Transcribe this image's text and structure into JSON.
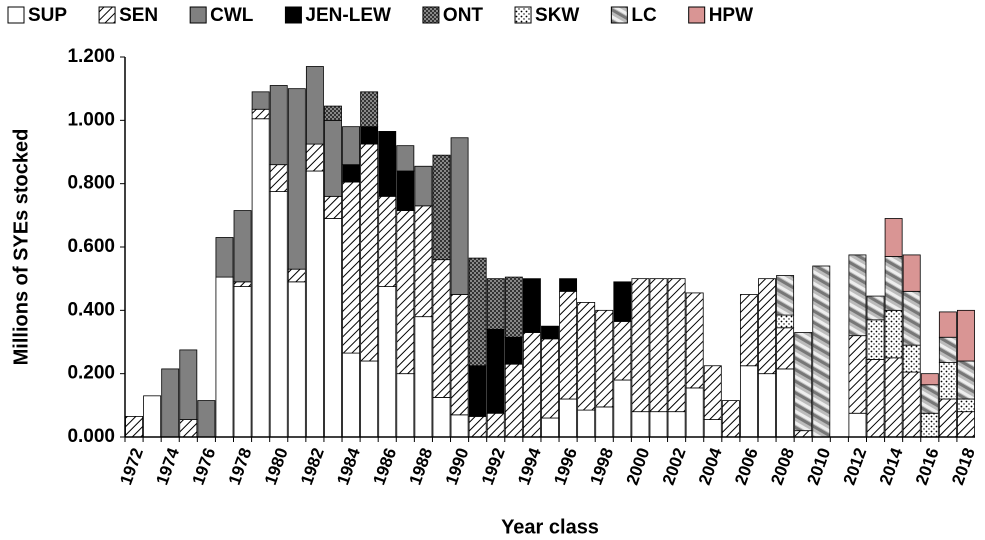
{
  "chart_data": {
    "type": "stacked-bar",
    "xlabel": "Year class",
    "ylabel": "Millions of SYEs stocked",
    "categories": [
      "1972",
      null,
      "1974",
      null,
      "1976",
      null,
      "1978",
      null,
      "1980",
      null,
      "1982",
      null,
      "1984",
      null,
      "1986",
      null,
      "1988",
      null,
      "1990",
      null,
      "1992",
      null,
      "1994",
      null,
      "1996",
      null,
      "1998",
      null,
      "2000",
      null,
      "2002",
      null,
      "2004",
      null,
      "2006",
      null,
      "2008",
      null,
      "2010",
      null,
      "2012",
      null,
      "2014",
      null,
      "2016",
      null,
      "2018"
    ],
    "ylim": [
      0,
      1.2
    ],
    "yticks": [
      {
        "value": 0,
        "label": "0.000"
      },
      {
        "value": 0.2,
        "label": "0.200"
      },
      {
        "value": 0.4,
        "label": "0.400"
      },
      {
        "value": 0.6,
        "label": "0.600"
      },
      {
        "value": 0.8,
        "label": "0.800"
      },
      {
        "value": 1.0,
        "label": "1.000"
      },
      {
        "value": 1.2,
        "label": "1.200"
      }
    ],
    "series": [
      {
        "name": "SUP",
        "color": "#ffffff",
        "pattern": "solid",
        "values": [
          0,
          0.13,
          0,
          0,
          0,
          0.505,
          0.475,
          1.005,
          0.775,
          0.49,
          0.84,
          0.69,
          0.265,
          0.24,
          0.475,
          0.2,
          0.38,
          0.125,
          0.07,
          0,
          0,
          0,
          0,
          0.06,
          0.12,
          0.085,
          0.095,
          0.18,
          0.08,
          0.08,
          0.08,
          0.155,
          0.055,
          0,
          0.225,
          0.2,
          0.215,
          0,
          0,
          0,
          0.075,
          0,
          0,
          0,
          0,
          0,
          0
        ]
      },
      {
        "name": "SEN",
        "color": "#000000",
        "pattern": "hatch",
        "values": [
          0.065,
          0,
          0,
          0.055,
          0,
          0,
          0.015,
          0.03,
          0.085,
          0.04,
          0.085,
          0.07,
          0.54,
          0.685,
          0.285,
          0.515,
          0.35,
          0.435,
          0.38,
          0.065,
          0.075,
          0.23,
          0.33,
          0.25,
          0.34,
          0.34,
          0.305,
          0.185,
          0.42,
          0.42,
          0.42,
          0.3,
          0.17,
          0.115,
          0.225,
          0.3,
          0.13,
          0.02,
          0,
          0,
          0.245,
          0.245,
          0.25,
          0.205,
          0,
          0.12,
          0.08
        ]
      },
      {
        "name": "CWL",
        "color": "#808080",
        "pattern": "solid",
        "values": [
          0,
          0,
          0.215,
          0.22,
          0.115,
          0.125,
          0.225,
          0.055,
          0.25,
          0.57,
          0.245,
          0.24,
          0.12,
          0,
          0,
          0.08,
          0.125,
          0,
          0.495,
          0,
          0,
          0,
          0,
          0,
          0,
          0,
          0,
          0,
          0,
          0,
          0,
          0,
          0,
          0,
          0,
          0,
          0,
          0,
          0,
          0,
          0,
          0,
          0,
          0,
          0,
          0,
          0
        ]
      },
      {
        "name": "JEN-LEW",
        "color": "#000000",
        "pattern": "solid",
        "values": [
          0,
          0,
          0,
          0,
          0,
          0,
          0,
          0,
          0,
          0,
          0,
          0,
          0.055,
          0.055,
          0.205,
          0.125,
          0,
          0,
          0,
          0.16,
          0.265,
          0.085,
          0.17,
          0.04,
          0.04,
          0,
          0,
          0.125,
          0,
          0,
          0,
          0,
          0,
          0,
          0,
          0,
          0,
          0,
          0,
          0,
          0,
          0,
          0,
          0,
          0,
          0,
          0
        ]
      },
      {
        "name": "ONT",
        "color": "#555555",
        "pattern": "cross",
        "values": [
          0,
          0,
          0,
          0,
          0,
          0,
          0,
          0,
          0,
          0,
          0,
          0.045,
          0,
          0.11,
          0,
          0,
          0,
          0.33,
          0,
          0.34,
          0.16,
          0.19,
          0,
          0,
          0,
          0,
          0,
          0,
          0,
          0,
          0,
          0,
          0,
          0,
          0,
          0,
          0,
          0,
          0,
          0,
          0,
          0,
          0,
          0,
          0,
          0,
          0
        ]
      },
      {
        "name": "SKW",
        "color": "#000000",
        "pattern": "dots",
        "values": [
          0,
          0,
          0,
          0,
          0,
          0,
          0,
          0,
          0,
          0,
          0,
          0,
          0,
          0,
          0,
          0,
          0,
          0,
          0,
          0,
          0,
          0,
          0,
          0,
          0,
          0,
          0,
          0,
          0,
          0,
          0,
          0,
          0,
          0,
          0,
          0,
          0.04,
          0,
          0,
          0,
          0,
          0.125,
          0.15,
          0.085,
          0.075,
          0.115,
          0.04
        ]
      },
      {
        "name": "LC",
        "color": "#999999",
        "pattern": "diag",
        "values": [
          0,
          0,
          0,
          0,
          0,
          0,
          0,
          0,
          0,
          0,
          0,
          0,
          0,
          0,
          0,
          0,
          0,
          0,
          0,
          0,
          0,
          0,
          0,
          0,
          0,
          0,
          0,
          0,
          0,
          0,
          0,
          0,
          0,
          0,
          0,
          0,
          0.125,
          0.31,
          0.54,
          0,
          0.255,
          0.075,
          0.17,
          0.17,
          0.09,
          0.08,
          0.12
        ]
      },
      {
        "name": "HPW",
        "color": "#d99594",
        "pattern": "solid",
        "values": [
          0,
          0,
          0,
          0,
          0,
          0,
          0,
          0,
          0,
          0,
          0,
          0,
          0,
          0,
          0,
          0,
          0,
          0,
          0,
          0,
          0,
          0,
          0,
          0,
          0,
          0,
          0,
          0,
          0,
          0,
          0,
          0,
          0,
          0,
          0,
          0,
          0,
          0,
          0,
          0,
          0,
          0,
          0.12,
          0.115,
          0.035,
          0.08,
          0.16
        ]
      }
    ]
  }
}
